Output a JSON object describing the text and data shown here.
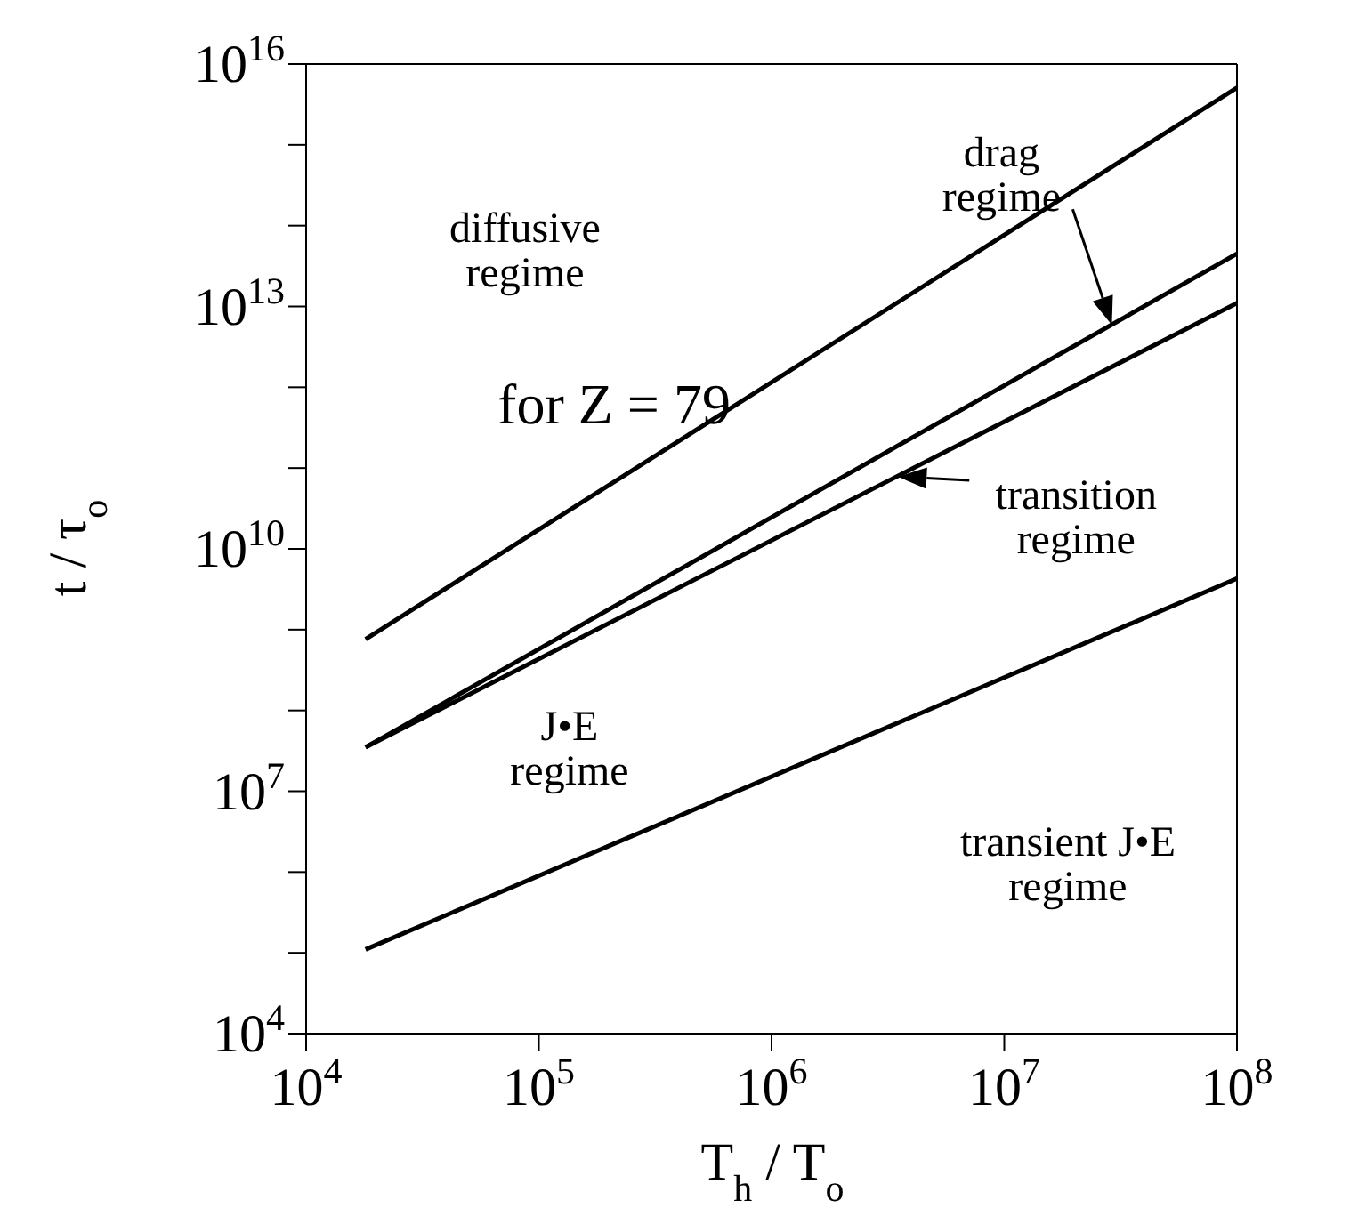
{
  "chart_data": {
    "type": "line",
    "xlabel": "T$_{h}$ / T$_{o}$",
    "ylabel": "t / τ$_{o}$",
    "log": "xy",
    "grid": false,
    "x": [
      18000.0,
      100000000.0
    ],
    "marker": "none",
    "line_style": "solid",
    "xlim": [
      10000.0,
      100000000.0
    ],
    "ylim": [
      10000.0,
      1e+16
    ],
    "xticks": [
      {
        "value": 10000.0,
        "label": "10$^{4}$"
      },
      {
        "value": 100000.0,
        "label": "10$^{5}$"
      },
      {
        "value": 1000000.0,
        "label": "10$^{6}$"
      },
      {
        "value": 10000000.0,
        "label": "10$^{7}$"
      },
      {
        "value": 100000000.0,
        "label": "10$^{8}$"
      }
    ],
    "yticks": [
      {
        "value": 10000.0,
        "label": "10$^{4}$"
      },
      {
        "value": 100000.0,
        "label": null
      },
      {
        "value": 1000000.0,
        "label": null
      },
      {
        "value": 10000000.0,
        "label": "10$^{7}$"
      },
      {
        "value": 100000000.0,
        "label": null
      },
      {
        "value": 1000000000.0,
        "label": null
      },
      {
        "value": 10000000000.0,
        "label": "10$^{10}$"
      },
      {
        "value": 100000000000.0,
        "label": null
      },
      {
        "value": 1000000000000.0,
        "label": null
      },
      {
        "value": 10000000000000.0,
        "label": "10$^{13}$"
      },
      {
        "value": 100000000000000.0,
        "label": null
      },
      {
        "value": 1000000000000000.0,
        "label": null
      },
      {
        "value": 1e+16,
        "label": "10$^{16}$"
      }
    ],
    "series": [
      {
        "color": "#000000",
        "values": [
          760000000.0,
          5100000000000000.0
        ]
      },
      {
        "color": "#000000",
        "values": [
          35000000.0,
          45000000000000.0
        ]
      },
      {
        "color": "#000000",
        "values": [
          35000000.0,
          11000000000000.0
        ]
      },
      {
        "color": "#000000",
        "values": [
          110000.0,
          4300000000.0
        ]
      }
    ],
    "annotations": [
      "diffusive\nregime",
      {
        "text": "drag\nregime",
        "x": 29000000.0,
        "y": 5900000000000.0
      },
      {
        "text": "transition\nregime",
        "x": 3500000.0,
        "y": 78000000000.0
      },
      "for Z = 79",
      "J•E\nregime",
      "transient J•E\nregime"
    ]
  }
}
